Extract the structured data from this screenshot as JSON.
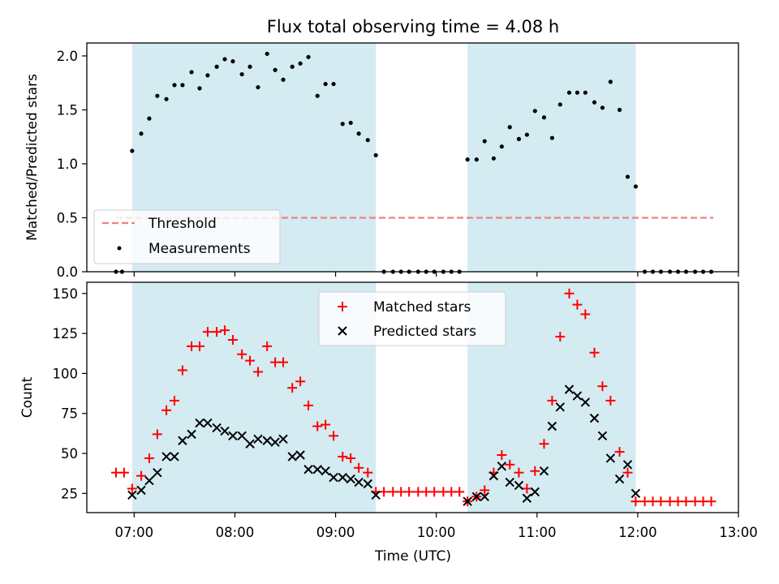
{
  "title": "Flux total observing time = 4.08 h",
  "xlabel": "Time (UTC)",
  "x_ticks": [
    {
      "t": 7,
      "label": "07:00"
    },
    {
      "t": 8,
      "label": "08:00"
    },
    {
      "t": 9,
      "label": "09:00"
    },
    {
      "t": 10,
      "label": "10:00"
    },
    {
      "t": 11,
      "label": "11:00"
    },
    {
      "t": 12,
      "label": "12:00"
    },
    {
      "t": 13,
      "label": "13:00"
    }
  ],
  "colors": {
    "shade": "#add8e6",
    "threshold": "#f08080",
    "measurements": "#000000",
    "matched": "#ff0000",
    "predicted": "#000000"
  },
  "chart_data": [
    {
      "type": "scatter",
      "ylabel": "Matched/Predicted stars",
      "xlim": [
        6.53,
        13.0
      ],
      "ylim": [
        0,
        2.12
      ],
      "y_ticks": [
        0.0,
        0.5,
        1.0,
        1.5,
        2.0
      ],
      "y_tick_labels": [
        "0.0",
        "0.5",
        "1.0",
        "1.5",
        "2.0"
      ],
      "shaded_intervals": [
        [
          6.98,
          9.4
        ],
        [
          10.31,
          11.98
        ]
      ],
      "legend": {
        "position": "lower-left",
        "entries": [
          "Threshold",
          "Measurements"
        ]
      },
      "threshold": {
        "name": "Threshold",
        "y": 0.5,
        "x_range": [
          6.82,
          12.75
        ],
        "style": "dashed"
      },
      "series": [
        {
          "name": "Measurements",
          "marker": "dot",
          "points": [
            [
              6.82,
              0
            ],
            [
              6.88,
              0
            ],
            [
              6.98,
              1.12
            ],
            [
              7.07,
              1.28
            ],
            [
              7.15,
              1.42
            ],
            [
              7.23,
              1.63
            ],
            [
              7.32,
              1.6
            ],
            [
              7.4,
              1.73
            ],
            [
              7.48,
              1.73
            ],
            [
              7.57,
              1.85
            ],
            [
              7.65,
              1.7
            ],
            [
              7.73,
              1.82
            ],
            [
              7.82,
              1.9
            ],
            [
              7.9,
              1.97
            ],
            [
              7.98,
              1.95
            ],
            [
              8.07,
              1.83
            ],
            [
              8.15,
              1.9
            ],
            [
              8.23,
              1.71
            ],
            [
              8.32,
              2.02
            ],
            [
              8.4,
              1.87
            ],
            [
              8.48,
              1.78
            ],
            [
              8.57,
              1.9
            ],
            [
              8.65,
              1.93
            ],
            [
              8.73,
              1.99
            ],
            [
              8.82,
              1.63
            ],
            [
              8.9,
              1.74
            ],
            [
              8.98,
              1.74
            ],
            [
              9.07,
              1.37
            ],
            [
              9.15,
              1.38
            ],
            [
              9.23,
              1.28
            ],
            [
              9.32,
              1.22
            ],
            [
              9.4,
              1.08
            ],
            [
              9.48,
              0
            ],
            [
              9.57,
              0
            ],
            [
              9.65,
              0
            ],
            [
              9.73,
              0
            ],
            [
              9.82,
              0
            ],
            [
              9.9,
              0
            ],
            [
              9.98,
              0
            ],
            [
              10.07,
              0
            ],
            [
              10.15,
              0
            ],
            [
              10.23,
              0
            ],
            [
              10.31,
              1.04
            ],
            [
              10.4,
              1.04
            ],
            [
              10.48,
              1.21
            ],
            [
              10.57,
              1.05
            ],
            [
              10.65,
              1.16
            ],
            [
              10.73,
              1.34
            ],
            [
              10.82,
              1.23
            ],
            [
              10.9,
              1.27
            ],
            [
              10.98,
              1.49
            ],
            [
              11.07,
              1.43
            ],
            [
              11.15,
              1.24
            ],
            [
              11.23,
              1.55
            ],
            [
              11.32,
              1.66
            ],
            [
              11.4,
              1.66
            ],
            [
              11.48,
              1.66
            ],
            [
              11.57,
              1.57
            ],
            [
              11.65,
              1.52
            ],
            [
              11.73,
              1.76
            ],
            [
              11.82,
              1.5
            ],
            [
              11.9,
              0.88
            ],
            [
              11.98,
              0.79
            ],
            [
              12.07,
              0
            ],
            [
              12.15,
              0
            ],
            [
              12.23,
              0
            ],
            [
              12.32,
              0
            ],
            [
              12.4,
              0
            ],
            [
              12.48,
              0
            ],
            [
              12.57,
              0
            ],
            [
              12.65,
              0
            ],
            [
              12.73,
              0
            ]
          ]
        }
      ]
    },
    {
      "type": "scatter",
      "ylabel": "Count",
      "xlim": [
        6.53,
        13.0
      ],
      "ylim": [
        13,
        157
      ],
      "y_ticks": [
        25,
        50,
        75,
        100,
        125,
        150
      ],
      "y_tick_labels": [
        "25",
        "50",
        "75",
        "100",
        "125",
        "150"
      ],
      "shaded_intervals": [
        [
          6.98,
          9.4
        ],
        [
          10.31,
          11.98
        ]
      ],
      "legend": {
        "position": "upper-center",
        "entries": [
          "Matched stars",
          "Predicted stars"
        ]
      },
      "series": [
        {
          "name": "Matched stars",
          "marker": "plus",
          "points": [
            [
              6.82,
              38
            ],
            [
              6.9,
              38
            ],
            [
              6.98,
              28
            ],
            [
              7.07,
              36
            ],
            [
              7.15,
              47
            ],
            [
              7.23,
              62
            ],
            [
              7.32,
              77
            ],
            [
              7.4,
              83
            ],
            [
              7.48,
              102
            ],
            [
              7.57,
              117
            ],
            [
              7.65,
              117
            ],
            [
              7.73,
              126
            ],
            [
              7.82,
              126
            ],
            [
              7.9,
              127
            ],
            [
              7.98,
              121
            ],
            [
              8.07,
              112
            ],
            [
              8.15,
              108
            ],
            [
              8.23,
              101
            ],
            [
              8.32,
              117
            ],
            [
              8.4,
              107
            ],
            [
              8.48,
              107
            ],
            [
              8.57,
              91
            ],
            [
              8.65,
              95
            ],
            [
              8.73,
              80
            ],
            [
              8.82,
              67
            ],
            [
              8.9,
              68
            ],
            [
              8.98,
              61
            ],
            [
              9.07,
              48
            ],
            [
              9.15,
              47
            ],
            [
              9.23,
              41
            ],
            [
              9.32,
              38
            ],
            [
              9.4,
              26
            ],
            [
              9.48,
              26
            ],
            [
              9.57,
              26
            ],
            [
              9.65,
              26
            ],
            [
              9.73,
              26
            ],
            [
              9.82,
              26
            ],
            [
              9.9,
              26
            ],
            [
              9.98,
              26
            ],
            [
              10.07,
              26
            ],
            [
              10.15,
              26
            ],
            [
              10.23,
              26
            ],
            [
              10.31,
              20
            ],
            [
              10.4,
              23
            ],
            [
              10.48,
              27
            ],
            [
              10.57,
              38
            ],
            [
              10.65,
              49
            ],
            [
              10.73,
              43
            ],
            [
              10.82,
              38
            ],
            [
              10.9,
              28
            ],
            [
              10.98,
              39
            ],
            [
              11.07,
              56
            ],
            [
              11.15,
              83
            ],
            [
              11.23,
              123
            ],
            [
              11.32,
              150
            ],
            [
              11.4,
              143
            ],
            [
              11.48,
              137
            ],
            [
              11.57,
              113
            ],
            [
              11.65,
              92
            ],
            [
              11.73,
              83
            ],
            [
              11.82,
              51
            ],
            [
              11.9,
              38
            ],
            [
              11.98,
              20
            ],
            [
              12.07,
              20
            ],
            [
              12.15,
              20
            ],
            [
              12.23,
              20
            ],
            [
              12.32,
              20
            ],
            [
              12.4,
              20
            ],
            [
              12.48,
              20
            ],
            [
              12.57,
              20
            ],
            [
              12.65,
              20
            ],
            [
              12.73,
              20
            ]
          ]
        },
        {
          "name": "Predicted stars",
          "marker": "x",
          "points": [
            [
              6.98,
              24
            ],
            [
              7.07,
              27
            ],
            [
              7.15,
              33
            ],
            [
              7.23,
              38
            ],
            [
              7.32,
              48
            ],
            [
              7.4,
              48
            ],
            [
              7.48,
              58
            ],
            [
              7.57,
              62
            ],
            [
              7.65,
              69
            ],
            [
              7.73,
              69
            ],
            [
              7.82,
              66
            ],
            [
              7.9,
              64
            ],
            [
              7.98,
              61
            ],
            [
              8.07,
              61
            ],
            [
              8.15,
              56
            ],
            [
              8.23,
              59
            ],
            [
              8.32,
              58
            ],
            [
              8.4,
              57
            ],
            [
              8.48,
              59
            ],
            [
              8.57,
              48
            ],
            [
              8.65,
              49
            ],
            [
              8.73,
              40
            ],
            [
              8.82,
              40
            ],
            [
              8.9,
              39
            ],
            [
              8.98,
              35
            ],
            [
              9.07,
              35
            ],
            [
              9.15,
              34
            ],
            [
              9.23,
              32
            ],
            [
              9.32,
              31
            ],
            [
              9.4,
              24
            ],
            [
              10.31,
              20
            ],
            [
              10.4,
              23
            ],
            [
              10.48,
              23
            ],
            [
              10.57,
              36
            ],
            [
              10.65,
              42
            ],
            [
              10.73,
              32
            ],
            [
              10.82,
              30
            ],
            [
              10.9,
              22
            ],
            [
              10.98,
              26
            ],
            [
              11.07,
              39
            ],
            [
              11.15,
              67
            ],
            [
              11.23,
              79
            ],
            [
              11.32,
              90
            ],
            [
              11.4,
              86
            ],
            [
              11.48,
              82
            ],
            [
              11.57,
              72
            ],
            [
              11.65,
              61
            ],
            [
              11.73,
              47
            ],
            [
              11.82,
              34
            ],
            [
              11.9,
              43
            ],
            [
              11.98,
              25
            ]
          ]
        }
      ]
    }
  ]
}
